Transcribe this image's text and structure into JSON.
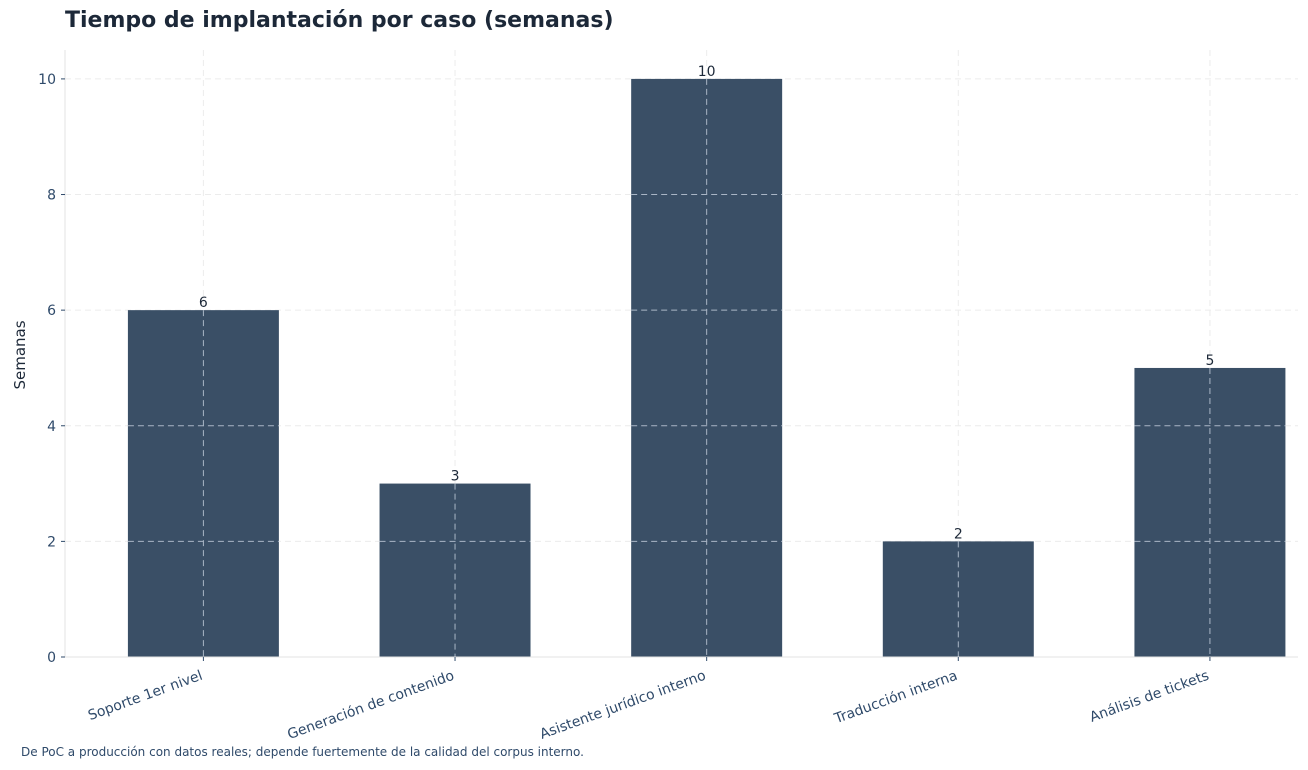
{
  "chart_data": {
    "type": "bar",
    "title": "Tiempo de implantación por caso (semanas)",
    "xlabel": "",
    "ylabel": "Semanas",
    "categories": [
      "Soporte 1er nivel",
      "Generación de contenido",
      "Asistente jurídico interno",
      "Traducción interna",
      "Análisis de tickets"
    ],
    "values": [
      6,
      3,
      10,
      2,
      5
    ],
    "data_labels": [
      "6",
      "3",
      "10",
      "2",
      "5"
    ],
    "ylim": [
      0,
      10.5
    ],
    "yticks": [
      0,
      2,
      4,
      6,
      8,
      10
    ],
    "grid": true,
    "legend": "none",
    "footnote": "De PoC a producción con datos reales; depende fuertemente de la calidad del corpus interno."
  },
  "colors": {
    "bar": "#3a4f66",
    "text": "#1c2838",
    "tick_text": "#2f4a6a",
    "axis": "#e3e3e3",
    "grid_bg": "#ececec",
    "grid_fg": "#aab6c6"
  }
}
